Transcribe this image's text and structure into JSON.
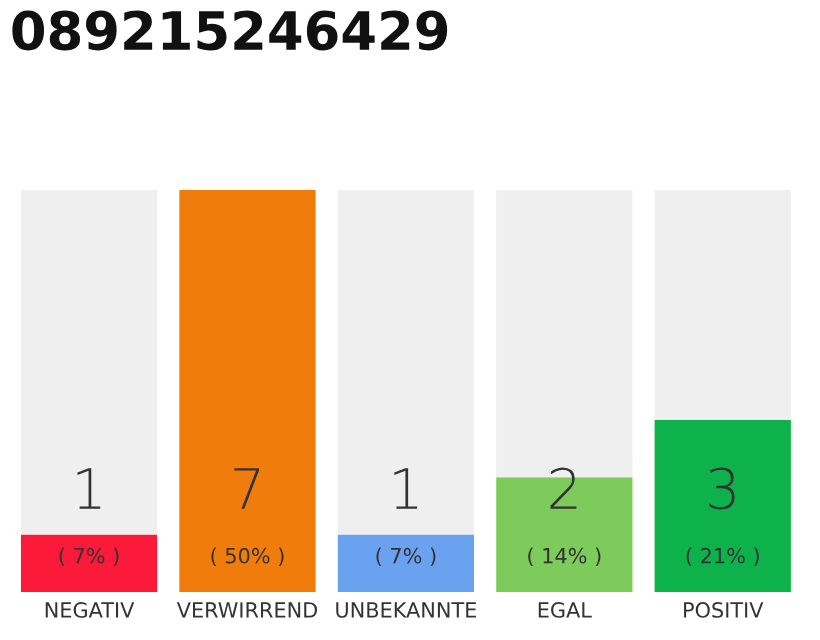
{
  "chart_data": {
    "type": "bar",
    "title": "089215246429",
    "categories": [
      "NEGATIV",
      "VERWIRREND",
      "UNBEKANNTE",
      "EGAL",
      "POSITIV"
    ],
    "stacked": true,
    "ylim": [
      0,
      7
    ],
    "tick_labels": "x",
    "grid": false,
    "legend": false,
    "series": [
      {
        "colors": [
          "#fb1a3a",
          "#f07d0b",
          "#6aa2f0",
          "#7dcb5a",
          "#0db34a"
        ],
        "values": [
          1,
          7,
          1,
          2,
          3
        ],
        "data_labels": true
      },
      {
        "color": "#efefef",
        "values": [
          6,
          0,
          6,
          5,
          4
        ]
      }
    ],
    "annotations": [
      "( 7% )",
      "( 50% )",
      "( 7% )",
      "( 14% )",
      "( 21% )"
    ]
  }
}
